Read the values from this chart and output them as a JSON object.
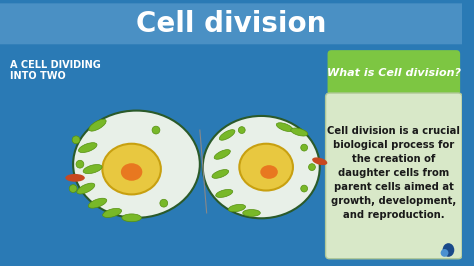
{
  "title": "Cell division",
  "title_bg_color": "#4a90c4",
  "title_text_color": "#ffffff",
  "main_bg_color": "#2a7ab5",
  "subtitle_label": "A CELL DIVIDING\nINTO TWO",
  "subtitle_color": "#ffffff",
  "question_box_color": "#7dc642",
  "question_text": "What is Cell division?",
  "question_text_color": "#ffffff",
  "info_box_color": "#d8e8c8",
  "info_text": "Cell division is a crucial\nbiological process for\nthe creation of\ndaughter cells from\nparent cells aimed at\ngrowth, development,\nand reproduction.",
  "info_text_color": "#1a1a1a",
  "cell_body_color": "#e8f0e8",
  "cell_outline_color": "#2a5a2a",
  "nucleus_outer_color": "#e8c840",
  "nucleus_inner_color": "#e87820",
  "chloroplast_color": "#78b828",
  "organelle_dot_color": "#78b828",
  "rod_color": "#c84820",
  "dividing_line_color": "#888888",
  "logo_color_dark": "#1a4a8a",
  "logo_color_light": "#4a90d0"
}
